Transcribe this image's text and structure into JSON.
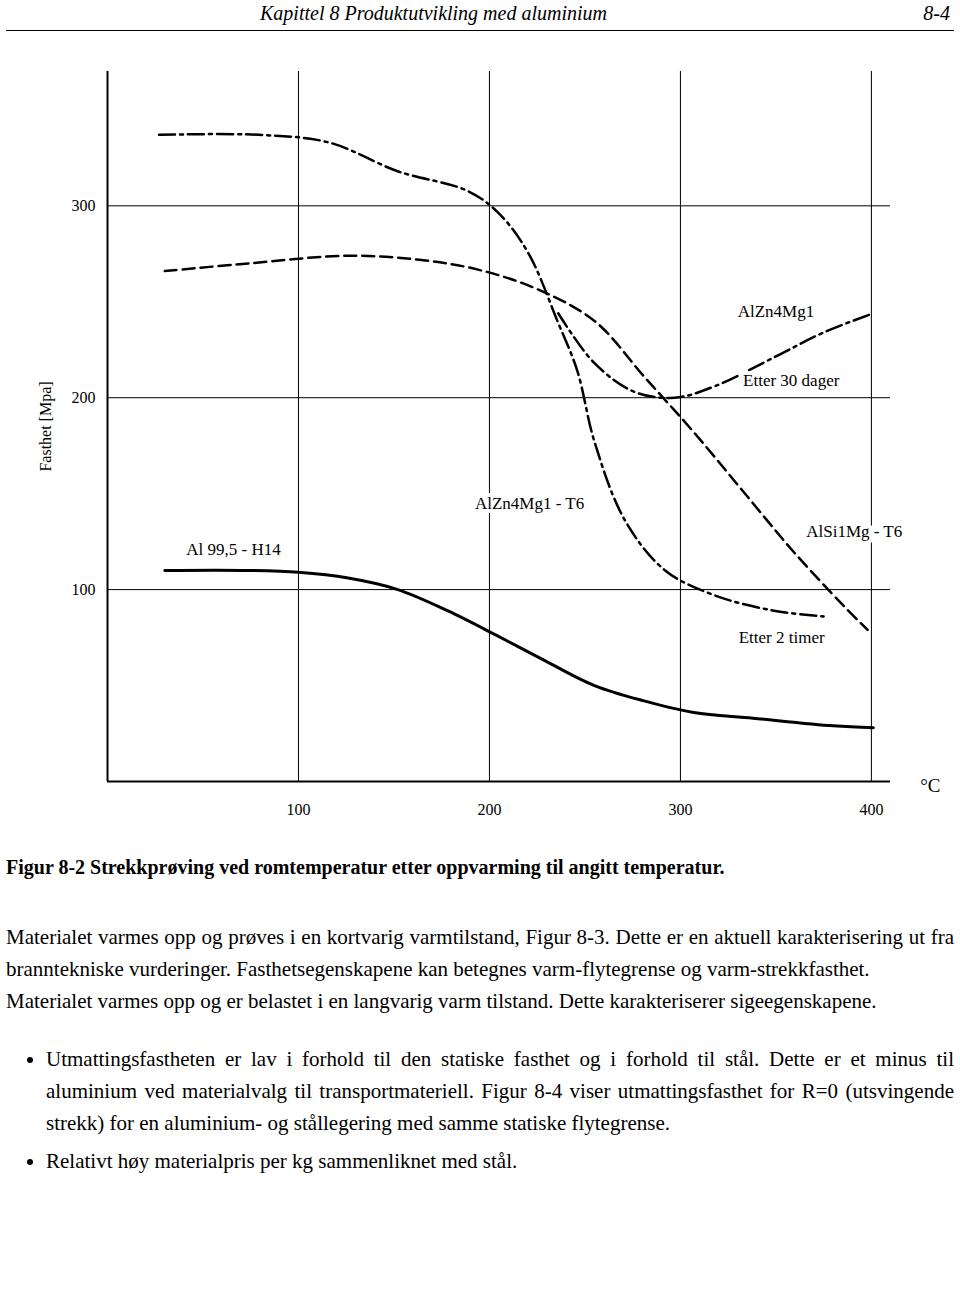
{
  "header": {
    "chapter": "Kapittel 8   Produktutvikling med aluminium",
    "page": "8-4"
  },
  "chart_data": {
    "type": "line",
    "y_label": "Fasthet [Mpa]",
    "x_label": "°C",
    "xlim": [
      0,
      410
    ],
    "ylim": [
      0,
      370
    ],
    "xticks": [
      100,
      200,
      300,
      400
    ],
    "yticks": [
      100,
      200,
      300
    ],
    "grid": true,
    "series": [
      {
        "name": "Al 99,5 - H14",
        "color": "#000000",
        "line_style": "solid",
        "label_x": 66,
        "label_y": 121,
        "x": [
          30,
          74,
          100,
          126,
          152,
          178,
          204,
          229,
          255,
          281,
          307,
          338,
          380,
          401
        ],
        "values": [
          110,
          110,
          109,
          106,
          100,
          89,
          76,
          63,
          50,
          42,
          36,
          33,
          29,
          28
        ]
      },
      {
        "name": "AlSi1Mg - T6",
        "color": "#000000",
        "line_style": "dashed",
        "label_x": 391,
        "label_y": 130,
        "x": [
          30,
          74,
          126,
          162,
          193,
          224,
          255,
          281,
          307,
          333,
          359,
          385,
          398
        ],
        "values": [
          266,
          270,
          274,
          272,
          267,
          257,
          240,
          211,
          182,
          151,
          120,
          92,
          79
        ]
      },
      {
        "name": "AlZn4Mg1 - T6",
        "color": "#000000",
        "line_style": "dashdot",
        "label_x": 221,
        "label_y": 145,
        "x": [
          27,
          79,
          116,
          152,
          188,
          204,
          220,
          236,
          246,
          255,
          271,
          292,
          318,
          349,
          375
        ],
        "values": [
          337,
          337,
          333,
          318,
          308,
          297,
          276,
          239,
          214,
          177,
          136,
          110,
          97,
          89,
          86
        ]
      },
      {
        "name": "AlZn4Mg1",
        "color": "#000000",
        "line_style": "dashdot",
        "label_x": 350,
        "label_y": 245,
        "x": [
          236,
          255,
          276,
          297,
          318,
          349,
          375,
          401
        ],
        "values": [
          244,
          218,
          203,
          200,
          206,
          221,
          234,
          244
        ]
      }
    ],
    "annotations": [
      {
        "text": "Etter 30 dager",
        "x": 358,
        "y": 209
      },
      {
        "text": "Etter 2 timer",
        "x": 353,
        "y": 75
      }
    ]
  },
  "caption": "Figur 8-2 Strekkprøving ved romtemperatur etter oppvarming til angitt temperatur.",
  "paragraphs": [
    "Materialet varmes opp og prøves i en kortvarig varmtilstand, Figur 8-3. Dette er en aktuell karakterisering ut fra branntekniske vurderinger. Fasthetsegenskapene kan betegnes varm-flytegrense og varm-strekkfasthet.",
    "Materialet varmes opp og er belastet i en langvarig varm tilstand. Dette karakteriserer sigeegenskapene."
  ],
  "bullets": [
    "Utmattingsfastheten er lav i forhold til den statiske fasthet og i forhold til stål. Dette er et minus til aluminium ved materialvalg til transportmateriell. Figur 8-4 viser utmattingsfasthet for R=0 (utsvingende strekk) for en aluminium- og stållegering med samme statiske flytegrense.",
    "Relativt høy materialpris per kg sammenliknet med stål."
  ]
}
